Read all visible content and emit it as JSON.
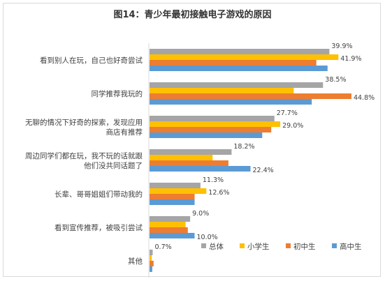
{
  "chart_data": {
    "type": "bar",
    "orientation": "horizontal",
    "title": "图14：青少年最初接触电子游戏的原因",
    "categories": [
      [
        "看到别人在玩，自己也好奇尝试"
      ],
      [
        "同学推荐我玩的"
      ],
      [
        "无聊的情况下好奇的探索，发现应用",
        "商店有推荐"
      ],
      [
        "周边同学们都在玩，我不玩的话就跟",
        "他们没共同话题了"
      ],
      [
        "长辈、哥哥姐姐们带动我的"
      ],
      [
        "看到宣传推荐，被吸引尝试"
      ],
      [
        "其他"
      ]
    ],
    "series": [
      {
        "name": "总体",
        "color": "#a5a5a5",
        "values": [
          39.9,
          38.5,
          27.7,
          18.2,
          11.3,
          9.0,
          0.7
        ]
      },
      {
        "name": "小学生",
        "color": "#ffc000",
        "values": [
          41.9,
          32.0,
          29.0,
          14.0,
          12.6,
          8.0,
          0.5
        ]
      },
      {
        "name": "初中生",
        "color": "#ed7d31",
        "values": [
          37.0,
          44.8,
          27.0,
          17.5,
          10.0,
          8.5,
          0.9
        ]
      },
      {
        "name": "高中生",
        "color": "#5b9bd5",
        "values": [
          39.5,
          36.0,
          25.0,
          22.4,
          10.0,
          10.0,
          0.6
        ]
      }
    ],
    "data_labels": [
      {
        "series": 0,
        "category": 0,
        "text": "39.9%"
      },
      {
        "series": 1,
        "category": 0,
        "text": "41.9%"
      },
      {
        "series": 0,
        "category": 1,
        "text": "38.5%"
      },
      {
        "series": 2,
        "category": 1,
        "text": "44.8%"
      },
      {
        "series": 0,
        "category": 2,
        "text": "27.7%"
      },
      {
        "series": 1,
        "category": 2,
        "text": "29.0%"
      },
      {
        "series": 0,
        "category": 3,
        "text": "18.2%"
      },
      {
        "series": 3,
        "category": 3,
        "text": "22.4%"
      },
      {
        "series": 0,
        "category": 4,
        "text": "11.3%"
      },
      {
        "series": 1,
        "category": 4,
        "text": "12.6%"
      },
      {
        "series": 0,
        "category": 5,
        "text": "9.0%"
      },
      {
        "series": 3,
        "category": 5,
        "text": "10.0%"
      },
      {
        "series": 0,
        "category": 6,
        "text": "0.7%"
      }
    ],
    "xlim": [
      0,
      45
    ],
    "grid": false,
    "legend_position": "bottom-right"
  }
}
